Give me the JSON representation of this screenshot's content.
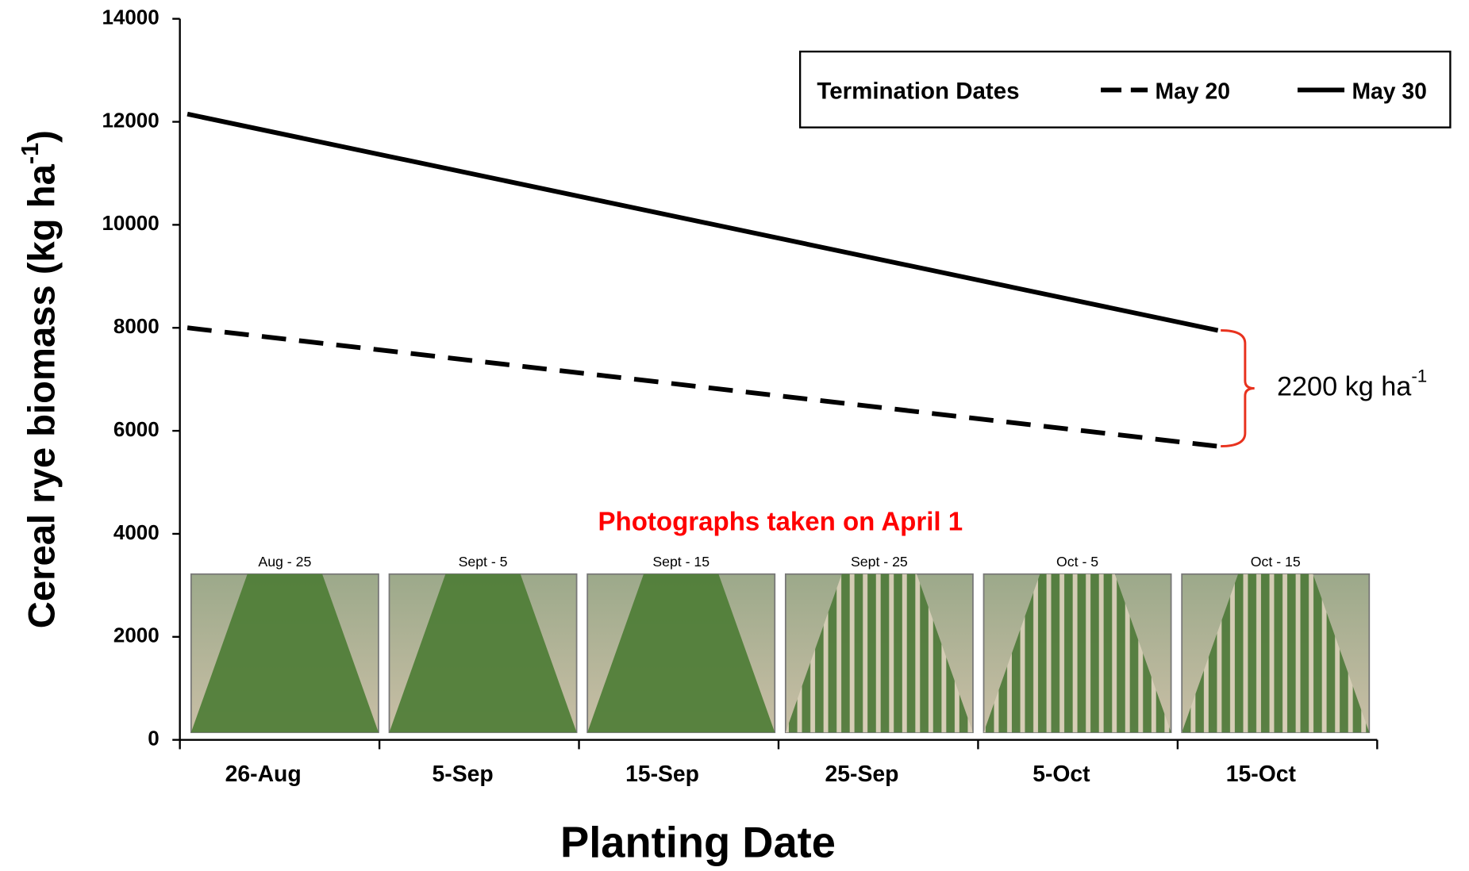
{
  "chart_data": {
    "type": "line",
    "categories": [
      "26-Aug",
      "5-Sep",
      "15-Sep",
      "25-Sep",
      "5-Oct",
      "15-Oct"
    ],
    "series": [
      {
        "name": "May 20",
        "color": "#000000",
        "dash": true,
        "values": [
          8000,
          7540,
          7080,
          6620,
          6160,
          5700
        ]
      },
      {
        "name": "May 30",
        "color": "#000000",
        "dash": false,
        "values": [
          12150,
          11310,
          10470,
          9630,
          8790,
          7950
        ]
      }
    ],
    "ylim": [
      0,
      14000
    ],
    "yticks": [
      0,
      2000,
      4000,
      6000,
      8000,
      10000,
      12000,
      14000
    ],
    "ylabel": {
      "text": "Cereal rye biomass (kg ha",
      "sup": "-1",
      "tail": ")"
    },
    "xlabel": "Planting Date",
    "legend": {
      "title": "Termination Dates",
      "position": "top-right"
    },
    "annotation": {
      "text": "2200 kg ha",
      "sup": "-1",
      "color": "#e8321e"
    },
    "photos": {
      "caption": "Photographs taken on April 1",
      "caption_color": "#ff0000",
      "labels": [
        "Aug - 25",
        "Sept - 5",
        "Sept - 15",
        "Sept - 25",
        "Oct - 5",
        "Oct - 15"
      ]
    }
  }
}
